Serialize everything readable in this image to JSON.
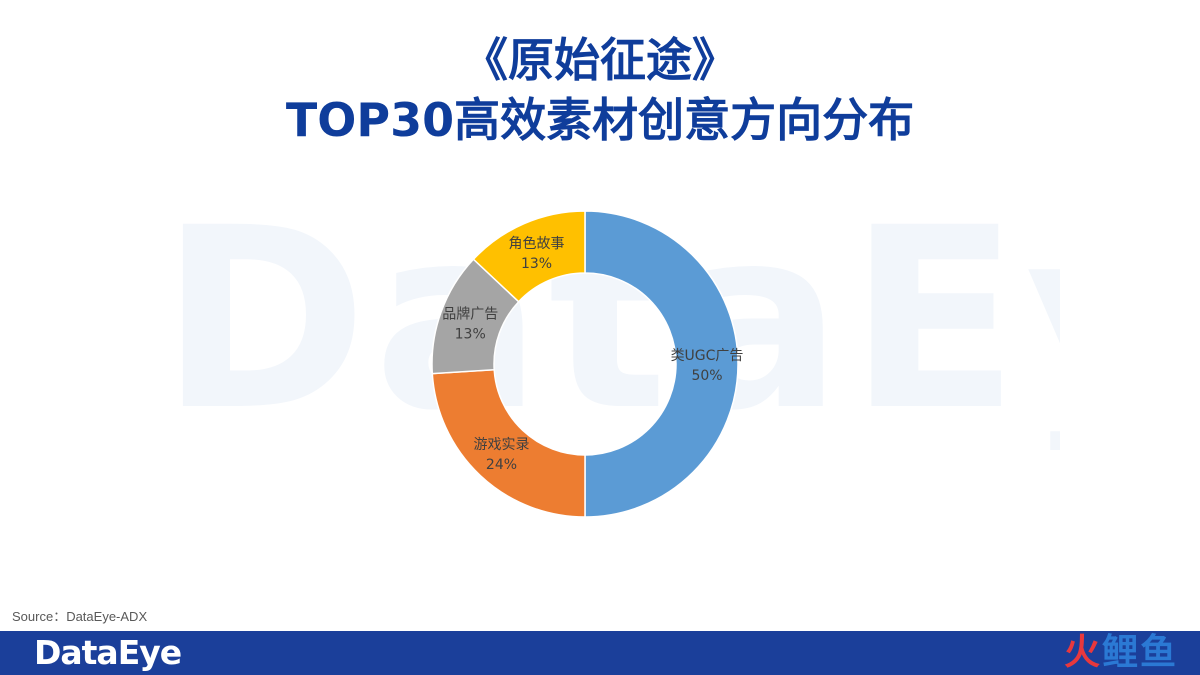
{
  "title": {
    "line1": "《原始征途》",
    "line2": "TOP30高效素材创意方向分布"
  },
  "watermark_text": "DataEye",
  "chart_data": {
    "type": "pie",
    "donut": true,
    "title": "",
    "categories": [
      "类UGC广告",
      "游戏实录",
      "品牌广告",
      "角色故事"
    ],
    "values": [
      50,
      24,
      13,
      13
    ],
    "labels": [
      "50%",
      "24%",
      "13%",
      "13%"
    ],
    "colors": [
      "#5b9bd5",
      "#ed7d31",
      "#a5a5a5",
      "#ffc000"
    ],
    "start_angle_deg": 0,
    "direction": "clockwise",
    "legend": "none"
  },
  "source": "Source：DataEye-ADX",
  "footer": {
    "logo": "DataEye",
    "mark": [
      "火",
      "鲤",
      "鱼"
    ],
    "background": "#1b3f9a"
  }
}
